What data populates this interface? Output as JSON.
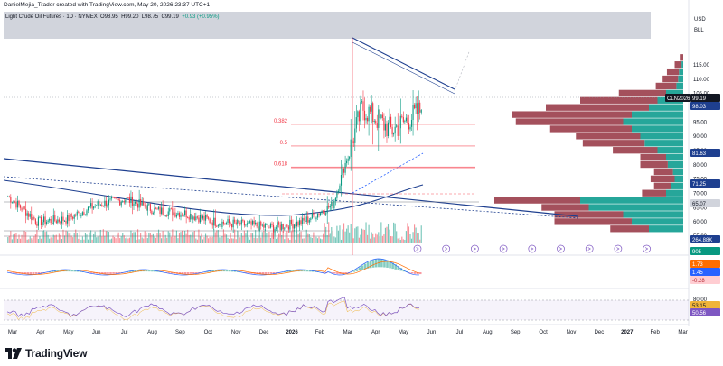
{
  "credit": "DanielMejia_Trader created with TradingView.com, May 20, 2026 23:37 UTC+1",
  "legend": {
    "symbol": "Light Crude Oil Futures · 1D · NYMEX",
    "open": "O98.95",
    "high": "H99.20",
    "low": "L98.75",
    "close": "C99.19",
    "change": "+0.93 (+0.95%)"
  },
  "axis": {
    "currency": "USD",
    "unit": "BLL",
    "price_ticks": [
      "115.00",
      "110.00",
      "105.00",
      "100.00",
      "95.00",
      "90.00",
      "85.00",
      "80.00",
      "75.00",
      "70.00",
      "65.00",
      "60.00",
      "55.00"
    ],
    "month_ticks": [
      "Mar",
      "Apr",
      "May",
      "Jun",
      "Jul",
      "Aug",
      "Sep",
      "Oct",
      "Nov",
      "Dec",
      "2026",
      "Feb",
      "Mar",
      "Apr",
      "May",
      "Jun",
      "Jul",
      "Aug",
      "Sep",
      "Oct",
      "Nov",
      "Dec",
      "2027",
      "Feb",
      "Mar"
    ],
    "osc1_ticks": [
      "0.00"
    ],
    "osc2_ticks": [
      "80.00"
    ]
  },
  "badges": {
    "symbol_tag": "CLN2026",
    "last_price": "99.19",
    "level_98": "98.03",
    "level_81": "81.63",
    "level_71": "71.25",
    "level_65": "65.07",
    "volume": "264.88K",
    "count": "905",
    "macd1": "1.73",
    "macd2": "1.45",
    "macd3": "-0.28",
    "rsi1": "53.15",
    "rsi2": "50.56"
  },
  "fib_labels": [
    "0.382",
    "0.5",
    "0.618"
  ],
  "brand": "TradingView",
  "colors": {
    "up": "#089981",
    "down": "#f23645",
    "vp_up": "#26a69a",
    "vp_down": "#a4505c",
    "trend_blue": "#1e3f8f",
    "macd": "#2962ff",
    "signal": "#ff6d00",
    "rsi": "#7e57c2",
    "badge_orange": "#ff6d00",
    "badge_blue": "#1e3f8f"
  },
  "chart_data": {
    "type": "candlestick",
    "symbol": "CLN2026",
    "ylim": [
      50,
      120
    ],
    "last_price": 99.19,
    "key_levels": [
      98.03,
      81.63,
      71.25,
      65.07
    ],
    "fib_levels": [
      {
        "label": "0.382",
        "value": 94.2
      },
      {
        "label": "0.5",
        "value": 86.6
      },
      {
        "label": "0.618",
        "value": 79.1
      }
    ],
    "monthly_close_approx": [
      {
        "month": "Mar",
        "close": 69
      },
      {
        "month": "Apr",
        "close": 60
      },
      {
        "month": "May",
        "close": 61
      },
      {
        "month": "Jun",
        "close": 66
      },
      {
        "month": "Jul",
        "close": 68
      },
      {
        "month": "Aug",
        "close": 64
      },
      {
        "month": "Sep",
        "close": 63
      },
      {
        "month": "Oct",
        "close": 60
      },
      {
        "month": "Nov",
        "close": 59
      },
      {
        "month": "Dec",
        "close": 58
      },
      {
        "month": "2026",
        "close": 60
      },
      {
        "month": "Feb",
        "close": 66
      },
      {
        "month": "Mar",
        "close": 100
      },
      {
        "month": "Apr",
        "close": 92
      },
      {
        "month": "May",
        "close": 99.19
      }
    ]
  }
}
